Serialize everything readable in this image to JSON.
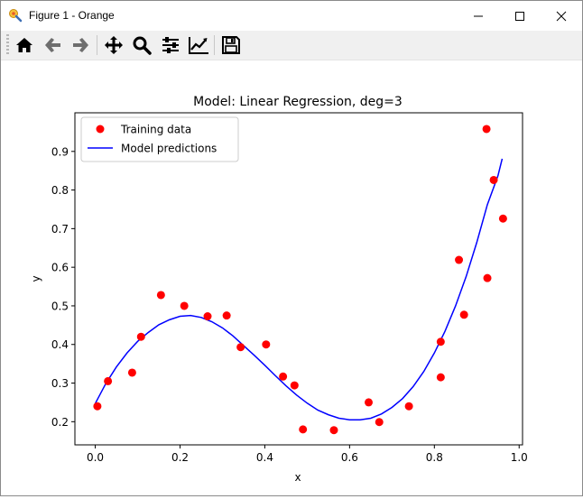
{
  "window": {
    "title": "Figure 1 - Orange",
    "controls": [
      "minimize-icon",
      "maximize-icon",
      "close-icon"
    ]
  },
  "toolbar": {
    "buttons": [
      "home-icon",
      "back-icon",
      "forward-icon",
      "pan-icon",
      "zoom-icon",
      "subplots-icon",
      "edit-axis-icon",
      "save-icon"
    ]
  },
  "chart_data": {
    "type": "scatter",
    "title": "Model: Linear Regression, deg=3",
    "xlabel": "x",
    "ylabel": "y",
    "xlim": [
      -0.048,
      1.008
    ],
    "ylim": [
      0.14,
      1.0
    ],
    "xticks": [
      0.0,
      0.2,
      0.4,
      0.6,
      0.8,
      1.0
    ],
    "xtick_labels": [
      "0.0",
      "0.2",
      "0.4",
      "0.6",
      "0.8",
      "1.0"
    ],
    "yticks": [
      0.2,
      0.3,
      0.4,
      0.5,
      0.6,
      0.7,
      0.8,
      0.9
    ],
    "ytick_labels": [
      "0.2",
      "0.3",
      "0.4",
      "0.5",
      "0.6",
      "0.7",
      "0.8",
      "0.9"
    ],
    "grid": false,
    "legend_position": "upper-left",
    "series": [
      {
        "name": "Training data",
        "kind": "scatter",
        "color": "#ff0000",
        "x": [
          0.005,
          0.03,
          0.087,
          0.108,
          0.155,
          0.21,
          0.265,
          0.31,
          0.343,
          0.403,
          0.443,
          0.47,
          0.49,
          0.563,
          0.645,
          0.67,
          0.74,
          0.815,
          0.815,
          0.858,
          0.87,
          0.923,
          0.925,
          0.94,
          0.962
        ],
        "y": [
          0.24,
          0.305,
          0.327,
          0.42,
          0.528,
          0.5,
          0.473,
          0.475,
          0.393,
          0.4,
          0.317,
          0.294,
          0.18,
          0.178,
          0.25,
          0.199,
          0.24,
          0.407,
          0.315,
          0.619,
          0.477,
          0.958,
          0.572,
          0.826,
          0.726
        ]
      },
      {
        "name": "Model predictions",
        "kind": "line",
        "color": "#0000ff",
        "x": [
          0.0,
          0.025,
          0.05,
          0.075,
          0.1,
          0.125,
          0.15,
          0.175,
          0.2,
          0.225,
          0.25,
          0.275,
          0.3,
          0.325,
          0.35,
          0.375,
          0.4,
          0.425,
          0.45,
          0.475,
          0.5,
          0.525,
          0.55,
          0.575,
          0.6,
          0.625,
          0.65,
          0.675,
          0.7,
          0.725,
          0.75,
          0.775,
          0.8,
          0.825,
          0.85,
          0.875,
          0.9,
          0.925,
          0.95,
          0.96
        ],
        "y": [
          0.247,
          0.299,
          0.342,
          0.378,
          0.408,
          0.431,
          0.451,
          0.464,
          0.473,
          0.475,
          0.47,
          0.459,
          0.443,
          0.422,
          0.397,
          0.372,
          0.346,
          0.319,
          0.293,
          0.269,
          0.248,
          0.23,
          0.218,
          0.209,
          0.205,
          0.205,
          0.209,
          0.22,
          0.237,
          0.26,
          0.291,
          0.33,
          0.378,
          0.434,
          0.5,
          0.576,
          0.664,
          0.762,
          0.837,
          0.881
        ]
      }
    ]
  }
}
